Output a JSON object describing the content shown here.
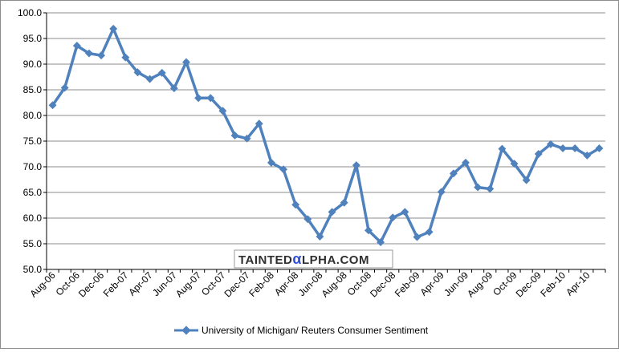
{
  "chart_data": {
    "type": "line",
    "title": "",
    "xlabel": "",
    "ylabel": "",
    "ylim": [
      50,
      100
    ],
    "yticks": [
      "50.0",
      "55.0",
      "60.0",
      "65.0",
      "70.0",
      "75.0",
      "80.0",
      "85.0",
      "90.0",
      "95.0",
      "100.0"
    ],
    "grid": true,
    "legend_position": "bottom",
    "x_tick_labels": [
      "Aug-06",
      "Oct-06",
      "Dec-06",
      "Feb-07",
      "Apr-07",
      "Jun-07",
      "Aug-07",
      "Oct-07",
      "Dec-07",
      "Feb-08",
      "Apr-08",
      "Jun-08",
      "Aug-08",
      "Oct-08",
      "Dec-08",
      "Feb-09",
      "Apr-09",
      "Jun-09",
      "Aug-09",
      "Oct-09",
      "Dec-09",
      "Feb-10",
      "Apr-10"
    ],
    "categories": [
      "Aug-06",
      "Sep-06",
      "Oct-06",
      "Nov-06",
      "Dec-06",
      "Jan-07",
      "Feb-07",
      "Mar-07",
      "Apr-07",
      "May-07",
      "Jun-07",
      "Jul-07",
      "Aug-07",
      "Sep-07",
      "Oct-07",
      "Nov-07",
      "Dec-07",
      "Jan-08",
      "Feb-08",
      "Mar-08",
      "Apr-08",
      "May-08",
      "Jun-08",
      "Jul-08",
      "Aug-08",
      "Sep-08",
      "Oct-08",
      "Nov-08",
      "Dec-08",
      "Jan-09",
      "Feb-09",
      "Mar-09",
      "Apr-09",
      "May-09",
      "Jun-09",
      "Jul-09",
      "Aug-09",
      "Sep-09",
      "Oct-09",
      "Nov-09",
      "Dec-09",
      "Jan-10",
      "Feb-10",
      "Mar-10",
      "Apr-10",
      "May-10"
    ],
    "series": [
      {
        "name": "University of Michigan/ Reuters Consumer Sentiment",
        "color": "#4f81bd",
        "values": [
          82.0,
          85.4,
          93.6,
          92.1,
          91.7,
          96.9,
          91.3,
          88.4,
          87.1,
          88.3,
          85.3,
          90.4,
          83.4,
          83.4,
          80.9,
          76.1,
          75.5,
          78.4,
          70.8,
          69.5,
          62.6,
          59.8,
          56.4,
          61.2,
          63.0,
          70.3,
          57.6,
          55.3,
          60.1,
          61.2,
          56.3,
          57.3,
          65.1,
          68.7,
          70.8,
          66.0,
          65.7,
          73.5,
          70.6,
          67.4,
          72.5,
          74.4,
          73.6,
          73.6,
          72.2,
          73.6
        ]
      }
    ],
    "gridline_color": "#8c8c8c",
    "axis_color": "#000000"
  },
  "watermark": {
    "text_before": "TAINTED",
    "alpha_glyph": "α",
    "text_after": "LPHA.COM",
    "box_color": "#2f2f2f",
    "alpha_color": "#2f4fd6"
  }
}
